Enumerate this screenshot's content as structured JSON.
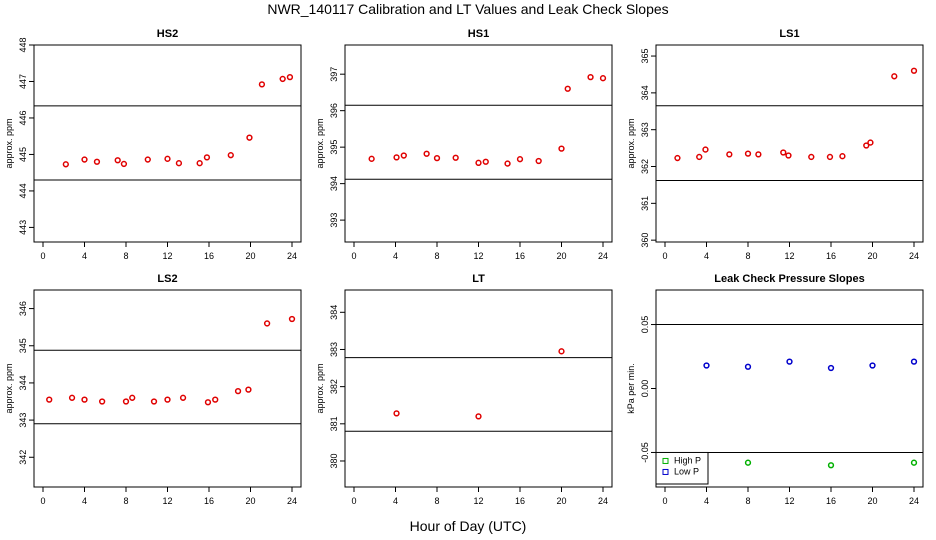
{
  "title": "NWR_140117  Calibration and LT Values and Leak Check Slopes",
  "xlabel_common": "Hour of Day (UTC)",
  "colors": {
    "ref_points": "#e00000",
    "high_p": "#00b000",
    "low_p": "#0000cc",
    "lines": "#000000"
  },
  "chart_data": [
    {
      "type": "scatter",
      "title": "HS2",
      "ylabel": "approx. ppm",
      "xlim": [
        0,
        24
      ],
      "xticks": [
        "0",
        "4",
        "8",
        "12",
        "16",
        "20",
        "24"
      ],
      "ylim": [
        442.6,
        448.0
      ],
      "yticks": [
        "443",
        "444",
        "445",
        "446",
        "447",
        "448"
      ],
      "hlines": [
        446.33,
        444.3
      ],
      "series": [
        {
          "color": "#e00000",
          "x": [
            2.2,
            4,
            5.2,
            7.2,
            7.8,
            10.1,
            12,
            13.1,
            15.1,
            15.8,
            18.1,
            19.9,
            21.1,
            23.1,
            23.8
          ],
          "y": [
            444.73,
            444.86,
            444.8,
            444.84,
            444.74,
            444.86,
            444.88,
            444.76,
            444.76,
            444.92,
            444.98,
            445.46,
            446.92,
            447.07,
            447.12
          ]
        }
      ]
    },
    {
      "type": "scatter",
      "title": "HS1",
      "ylabel": "approx. ppm",
      "xlim": [
        0,
        24
      ],
      "xticks": [
        "0",
        "4",
        "8",
        "12",
        "16",
        "20",
        "24"
      ],
      "ylim": [
        392.4,
        397.8
      ],
      "yticks": [
        "393",
        "394",
        "395",
        "396",
        "397"
      ],
      "hlines": [
        396.15,
        394.12
      ],
      "series": [
        {
          "color": "#e00000",
          "x": [
            1.7,
            4.1,
            4.8,
            7.0,
            8.0,
            9.8,
            12.0,
            12.7,
            14.8,
            16.0,
            17.8,
            20.0,
            20.6,
            22.8,
            24.0
          ],
          "y": [
            394.68,
            394.72,
            394.77,
            394.82,
            394.7,
            394.71,
            394.57,
            394.6,
            394.55,
            394.67,
            394.62,
            394.96,
            396.6,
            396.92,
            396.89
          ]
        }
      ]
    },
    {
      "type": "scatter",
      "title": "LS1",
      "ylabel": "approx. ppm",
      "xlim": [
        0,
        24
      ],
      "xticks": [
        "0",
        "4",
        "8",
        "12",
        "16",
        "20",
        "24"
      ],
      "ylim": [
        359.95,
        365.3
      ],
      "yticks": [
        "360",
        "361",
        "362",
        "363",
        "364",
        "365"
      ],
      "hlines": [
        363.65,
        361.62
      ],
      "series": [
        {
          "color": "#e00000",
          "x": [
            1.2,
            3.3,
            3.9,
            6.2,
            8.0,
            9.0,
            11.4,
            11.9,
            14.1,
            15.9,
            17.1,
            19.4,
            19.8,
            22.1,
            24.0
          ],
          "y": [
            362.23,
            362.26,
            362.46,
            362.33,
            362.35,
            362.33,
            362.38,
            362.3,
            362.26,
            362.26,
            362.28,
            362.57,
            362.65,
            364.45,
            364.6
          ]
        }
      ]
    },
    {
      "type": "scatter",
      "title": "LS2",
      "ylabel": "approx. ppm",
      "xlim": [
        0,
        24
      ],
      "xticks": [
        "0",
        "4",
        "8",
        "12",
        "16",
        "20",
        "24"
      ],
      "ylim": [
        341.2,
        346.5
      ],
      "yticks": [
        "342",
        "343",
        "344",
        "345",
        "346"
      ],
      "hlines": [
        344.88,
        342.9
      ],
      "series": [
        {
          "color": "#e00000",
          "x": [
            0.6,
            2.8,
            4.0,
            5.7,
            8.0,
            8.6,
            10.7,
            12.0,
            13.5,
            15.9,
            16.6,
            18.8,
            19.8,
            21.6,
            24.0
          ],
          "y": [
            343.55,
            343.6,
            343.55,
            343.5,
            343.5,
            343.6,
            343.5,
            343.55,
            343.6,
            343.48,
            343.55,
            343.78,
            343.82,
            345.6,
            345.72
          ]
        }
      ]
    },
    {
      "type": "scatter",
      "title": "LT",
      "ylabel": "approx. ppm",
      "xlim": [
        0,
        24
      ],
      "xticks": [
        "0",
        "4",
        "8",
        "12",
        "16",
        "20",
        "24"
      ],
      "ylim": [
        379.3,
        384.6
      ],
      "yticks": [
        "380",
        "381",
        "382",
        "383",
        "384"
      ],
      "hlines": [
        382.78,
        380.8
      ],
      "series": [
        {
          "color": "#e00000",
          "x": [
            4.1,
            12.0,
            20.0
          ],
          "y": [
            381.28,
            381.2,
            382.95
          ]
        }
      ]
    },
    {
      "type": "scatter",
      "title": "Leak Check Pressure Slopes",
      "ylabel": "kPa per min.",
      "xlim": [
        0,
        24
      ],
      "xticks": [
        "0",
        "4",
        "8",
        "12",
        "16",
        "20",
        "24"
      ],
      "ylim": [
        -0.077,
        0.077
      ],
      "yticks": [
        "-0.05",
        "0.00",
        "0.05"
      ],
      "hlines": [
        0.05,
        -0.05
      ],
      "legend": {
        "position": "bottom-left",
        "entries": [
          "High P",
          "Low P"
        ]
      },
      "series": [
        {
          "name": "High P",
          "color": "#00b000",
          "x": [
            8,
            16,
            24
          ],
          "y": [
            -0.058,
            -0.06,
            -0.058
          ]
        },
        {
          "name": "Low P",
          "color": "#0000cc",
          "x": [
            4,
            8,
            12,
            16,
            20,
            24
          ],
          "y": [
            0.018,
            0.017,
            0.021,
            0.016,
            0.018,
            0.021
          ]
        }
      ]
    }
  ]
}
